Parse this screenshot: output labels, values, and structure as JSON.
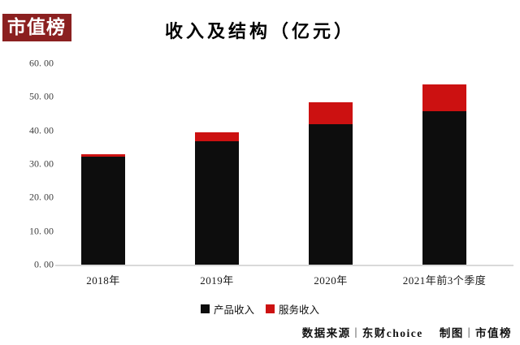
{
  "logo": {
    "text": "市值榜"
  },
  "title": "收入及结构（亿元）",
  "chart_data": {
    "type": "bar",
    "stacked": true,
    "title": "收入及结构（亿元）",
    "categories": [
      "2018年",
      "2019年",
      "2020年",
      "2021年前3个季度"
    ],
    "series": [
      {
        "name": "产品收入",
        "color": "#0d0d0d",
        "values": [
          32.3,
          36.8,
          41.9,
          45.8
        ]
      },
      {
        "name": "服务收入",
        "color": "#cc1111",
        "values": [
          0.6,
          2.6,
          6.5,
          7.8
        ]
      }
    ],
    "ylim": [
      0,
      60
    ],
    "ytick_values": [
      0,
      10,
      20,
      30,
      40,
      50,
      60
    ],
    "ytick_labels": [
      "0. 00",
      "10. 00",
      "20. 00",
      "30. 00",
      "40. 00",
      "50. 00",
      "60. 00"
    ],
    "grid": false,
    "legend_position": "bottom"
  },
  "footer": {
    "source_label": "数据来源",
    "divider": "|",
    "source_value": "东财choice",
    "maker_label": "制图",
    "maker_value": "市值榜"
  }
}
